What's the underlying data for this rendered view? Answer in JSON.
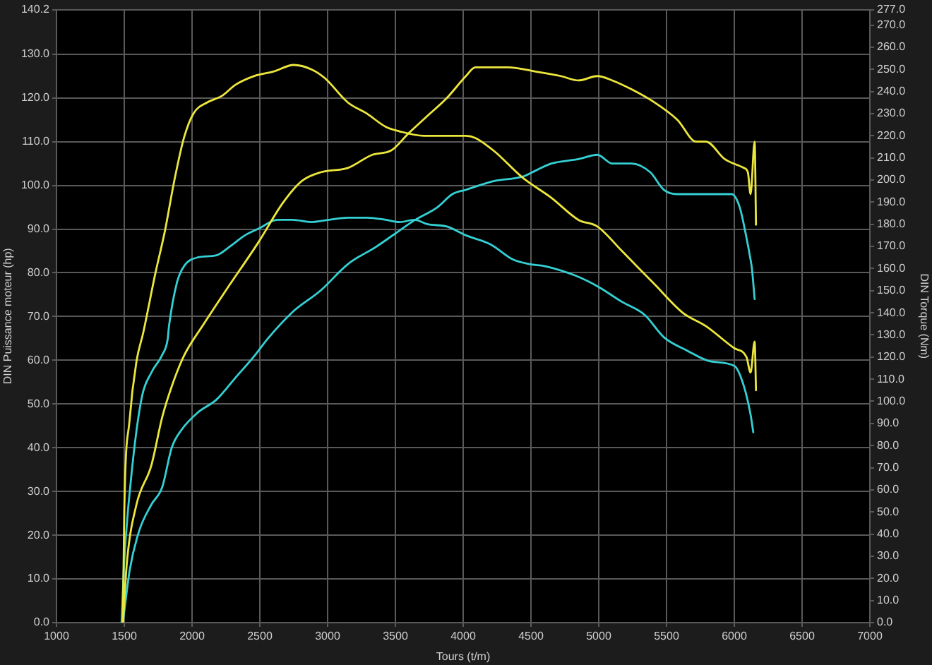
{
  "chart_data": {
    "type": "line",
    "xlabel": "Tours (t/m)",
    "ylabel": "DIN Puissance moteur (hp)",
    "y2label": "DIN Torque (Nm)",
    "xlim": [
      1000,
      7000
    ],
    "xticks": [
      1000,
      1500,
      2000,
      2500,
      3000,
      3500,
      4000,
      4500,
      5000,
      5500,
      6000,
      6500,
      7000
    ],
    "ylim": [
      0,
      140.2
    ],
    "yticks": [
      {
        "value": 0,
        "label": "0.0"
      },
      {
        "value": 10,
        "label": "10.0"
      },
      {
        "value": 20,
        "label": "20.0"
      },
      {
        "value": 30,
        "label": "30.0"
      },
      {
        "value": 40,
        "label": "40.0"
      },
      {
        "value": 50,
        "label": "50.0"
      },
      {
        "value": 60,
        "label": "60.0"
      },
      {
        "value": 70,
        "label": "70.0"
      },
      {
        "value": 80,
        "label": "80.0"
      },
      {
        "value": 90,
        "label": "90.0"
      },
      {
        "value": 100,
        "label": "100.0"
      },
      {
        "value": 110,
        "label": "110.0"
      },
      {
        "value": 120,
        "label": "120.0"
      },
      {
        "value": 130,
        "label": "130.0"
      },
      {
        "value": 140.2,
        "label": "140.2"
      }
    ],
    "y2lim": [
      0,
      277
    ],
    "y2ticks": [
      {
        "value": 0,
        "label": "0.0"
      },
      {
        "value": 10,
        "label": "10.0"
      },
      {
        "value": 20,
        "label": "20.0"
      },
      {
        "value": 30,
        "label": "30.0"
      },
      {
        "value": 40,
        "label": "40.0"
      },
      {
        "value": 50,
        "label": "50.0"
      },
      {
        "value": 60,
        "label": "60.0"
      },
      {
        "value": 70,
        "label": "70.0"
      },
      {
        "value": 80,
        "label": "80.0"
      },
      {
        "value": 90,
        "label": "90.0"
      },
      {
        "value": 100,
        "label": "100.0"
      },
      {
        "value": 110,
        "label": "110.0"
      },
      {
        "value": 120,
        "label": "120.0"
      },
      {
        "value": 130,
        "label": "130.0"
      },
      {
        "value": 140,
        "label": "140.0"
      },
      {
        "value": 150,
        "label": "150.0"
      },
      {
        "value": 160,
        "label": "160.0"
      },
      {
        "value": 170,
        "label": "170.0"
      },
      {
        "value": 180,
        "label": "180.0"
      },
      {
        "value": 190,
        "label": "190.0"
      },
      {
        "value": 200,
        "label": "200.0"
      },
      {
        "value": 210,
        "label": "210.0"
      },
      {
        "value": 220,
        "label": "220.0"
      },
      {
        "value": 230,
        "label": "230.0"
      },
      {
        "value": 240,
        "label": "240.0"
      },
      {
        "value": 250,
        "label": "250.0"
      },
      {
        "value": 260,
        "label": "260.0"
      },
      {
        "value": 270,
        "label": "270.0"
      },
      {
        "value": 277,
        "label": "277.0"
      }
    ],
    "grid": true,
    "series": [
      {
        "color": "#ece63c",
        "axis": "y2",
        "x": [
          1490,
          1500,
          1540,
          1590,
          1640,
          1730,
          1800,
          1870,
          1940,
          2010,
          2110,
          2220,
          2320,
          2460,
          2600,
          2750,
          2880,
          2980,
          3150,
          3290,
          3430,
          3530,
          3710,
          3880,
          4020,
          4090,
          4230,
          4440,
          4650,
          4850,
          4990,
          5170,
          5410,
          5620,
          5790,
          6000,
          6090,
          6120,
          6150,
          6160
        ],
        "values": [
          0,
          50,
          92,
          118,
          131,
          158,
          177,
          200,
          219,
          230,
          235,
          238,
          243,
          247,
          249,
          252,
          250,
          246,
          235,
          230,
          224,
          222,
          220,
          220,
          220,
          219,
          213,
          201,
          192,
          182,
          179,
          168,
          153,
          140,
          134,
          124,
          120,
          113,
          127,
          105
        ]
      },
      {
        "color": "#ece63c",
        "x": [
          1490,
          1520,
          1590,
          1700,
          1780,
          1850,
          1940,
          2080,
          2250,
          2490,
          2670,
          2810,
          2950,
          3150,
          3330,
          3470,
          3600,
          3740,
          3880,
          4020,
          4090,
          4200,
          4330,
          4540,
          4720,
          4850,
          4990,
          5100,
          5240,
          5410,
          5580,
          5720,
          5790,
          5930,
          6070,
          6100,
          6120,
          6150,
          6160
        ],
        "values": [
          0,
          14,
          27,
          36,
          47,
          54,
          61,
          68,
          76,
          87,
          96,
          101,
          103,
          104,
          107,
          108,
          112,
          116,
          120,
          125,
          127,
          127,
          127,
          126,
          125,
          124,
          125,
          124,
          122,
          119,
          115,
          110,
          110,
          106,
          104,
          103,
          98,
          110,
          91
        ]
      },
      {
        "color": "#34d0d4",
        "axis": "y2",
        "x": [
          1480,
          1500,
          1560,
          1630,
          1700,
          1780,
          1820,
          1830,
          1890,
          1940,
          2040,
          2180,
          2280,
          2390,
          2490,
          2630,
          2740,
          2880,
          3010,
          3150,
          3290,
          3430,
          3530,
          3640,
          3740,
          3880,
          4020,
          4200,
          4370,
          4490,
          4610,
          4820,
          4990,
          5170,
          5340,
          5480,
          5650,
          5830,
          6000,
          6070,
          6120,
          6140
        ],
        "values": [
          0,
          28,
          71,
          102,
          113,
          121,
          128,
          134,
          154,
          161,
          165,
          166,
          170,
          175,
          178,
          182,
          182,
          181,
          182,
          183,
          183,
          182,
          181,
          182,
          180,
          179,
          175,
          171,
          164,
          162,
          161,
          157,
          152,
          145,
          139,
          129,
          123,
          118,
          116,
          107,
          94,
          86
        ]
      },
      {
        "color": "#34d0d4",
        "x": [
          1490,
          1540,
          1610,
          1700,
          1780,
          1850,
          1920,
          2040,
          2180,
          2320,
          2460,
          2560,
          2740,
          2950,
          3150,
          3360,
          3500,
          3640,
          3810,
          3920,
          4020,
          4230,
          4440,
          4510,
          4650,
          4850,
          4990,
          5100,
          5240,
          5380,
          5480,
          5580,
          5760,
          5900,
          5980,
          6040,
          6090,
          6120,
          6130,
          6150
        ],
        "values": [
          0,
          12,
          21,
          27,
          31,
          40,
          44,
          48,
          51,
          56,
          61,
          65,
          71,
          76,
          82,
          86,
          89,
          92,
          95,
          98,
          99,
          101,
          102,
          103,
          105,
          106,
          107,
          105,
          105,
          103,
          99,
          98,
          98,
          98,
          98,
          95,
          88,
          83,
          81,
          74
        ]
      }
    ]
  }
}
